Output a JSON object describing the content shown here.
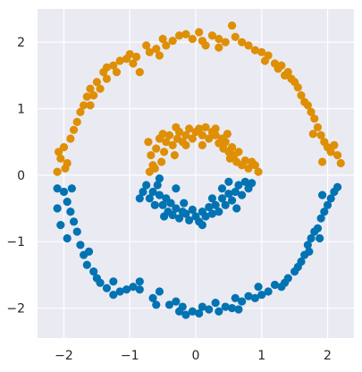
{
  "chart_data": {
    "type": "scatter",
    "title": "",
    "xlabel": "",
    "ylabel": "",
    "xlim": [
      -2.4,
      2.4
    ],
    "ylim": [
      -2.45,
      2.5
    ],
    "xticks": [
      -2,
      -1,
      0,
      1,
      2
    ],
    "yticks": [
      -2,
      -1,
      0,
      1,
      2
    ],
    "grid": true,
    "legend": "none",
    "colors": {
      "background": "#EAEAF2",
      "grid": "#FFFFFF",
      "blue": "#0173B2",
      "orange": "#DE8F05"
    },
    "series": [
      {
        "color": "#DE8F05",
        "points": [
          [
            -2.05,
            0.25
          ],
          [
            -2.0,
            0.42
          ],
          [
            -1.95,
            0.18
          ],
          [
            -2.1,
            0.05
          ],
          [
            -1.9,
            0.55
          ],
          [
            -1.85,
            0.68
          ],
          [
            -1.8,
            0.8
          ],
          [
            -1.75,
            0.95
          ],
          [
            -1.7,
            1.05
          ],
          [
            -1.65,
            1.18
          ],
          [
            -1.6,
            1.3
          ],
          [
            -1.55,
            1.2
          ],
          [
            -1.5,
            1.4
          ],
          [
            -1.45,
            1.3
          ],
          [
            -1.4,
            1.55
          ],
          [
            -1.35,
            1.45
          ],
          [
            -1.25,
            1.65
          ],
          [
            -1.2,
            1.55
          ],
          [
            -1.15,
            1.72
          ],
          [
            -1.05,
            1.75
          ],
          [
            -1.0,
            1.82
          ],
          [
            -0.95,
            1.68
          ],
          [
            -0.9,
            1.78
          ],
          [
            -0.85,
            1.55
          ],
          [
            -0.75,
            1.95
          ],
          [
            -0.7,
            1.85
          ],
          [
            -0.6,
            1.9
          ],
          [
            -0.5,
            2.05
          ],
          [
            -0.45,
            1.95
          ],
          [
            -0.35,
            2.02
          ],
          [
            -0.25,
            2.1
          ],
          [
            -0.15,
            2.12
          ],
          [
            -0.05,
            2.05
          ],
          [
            0.05,
            2.15
          ],
          [
            0.1,
            2.02
          ],
          [
            0.15,
            1.95
          ],
          [
            0.25,
            2.1
          ],
          [
            0.35,
            2.05
          ],
          [
            0.45,
            2.0
          ],
          [
            0.55,
            2.25
          ],
          [
            0.6,
            2.08
          ],
          [
            0.7,
            2.0
          ],
          [
            0.8,
            1.95
          ],
          [
            0.9,
            1.88
          ],
          [
            1.0,
            1.85
          ],
          [
            1.05,
            1.72
          ],
          [
            1.1,
            1.8
          ],
          [
            1.2,
            1.68
          ],
          [
            1.25,
            1.6
          ],
          [
            1.3,
            1.65
          ],
          [
            1.35,
            1.5
          ],
          [
            1.4,
            1.55
          ],
          [
            1.5,
            1.4
          ],
          [
            1.55,
            1.32
          ],
          [
            1.6,
            1.2
          ],
          [
            1.65,
            1.1
          ],
          [
            1.7,
            1.05
          ],
          [
            1.75,
            0.95
          ],
          [
            1.8,
            0.85
          ],
          [
            1.85,
            0.72
          ],
          [
            1.9,
            0.6
          ],
          [
            1.95,
            0.5
          ],
          [
            2.0,
            0.42
          ],
          [
            2.1,
            0.45
          ],
          [
            2.15,
            0.3
          ],
          [
            2.2,
            0.18
          ],
          [
            1.92,
            0.2
          ],
          [
            2.05,
            0.35
          ],
          [
            -1.98,
            0.1
          ],
          [
            -2.08,
            0.35
          ],
          [
            -1.6,
            1.05
          ],
          [
            -1.35,
            1.62
          ],
          [
            -0.55,
            1.8
          ],
          [
            0.35,
            1.92
          ],
          [
            1.45,
            1.45
          ],
          [
            1.78,
            0.62
          ],
          [
            -0.72,
            0.5
          ],
          [
            -0.68,
            0.3
          ],
          [
            -0.65,
            0.15
          ],
          [
            -0.6,
            0.4
          ],
          [
            -0.55,
            0.55
          ],
          [
            -0.52,
            0.2
          ],
          [
            -0.48,
            0.35
          ],
          [
            -0.45,
            0.5
          ],
          [
            -0.4,
            0.6
          ],
          [
            -0.35,
            0.45
          ],
          [
            -0.32,
            0.3
          ],
          [
            -0.28,
            0.55
          ],
          [
            -0.25,
            0.65
          ],
          [
            -0.2,
            0.5
          ],
          [
            -0.15,
            0.6
          ],
          [
            -0.1,
            0.7
          ],
          [
            -0.05,
            0.55
          ],
          [
            0.0,
            0.65
          ],
          [
            0.05,
            0.7
          ],
          [
            0.1,
            0.6
          ],
          [
            0.15,
            0.72
          ],
          [
            0.2,
            0.55
          ],
          [
            0.25,
            0.65
          ],
          [
            0.3,
            0.6
          ],
          [
            0.35,
            0.48
          ],
          [
            0.4,
            0.55
          ],
          [
            0.42,
            0.4
          ],
          [
            0.45,
            0.5
          ],
          [
            0.5,
            0.35
          ],
          [
            0.52,
            0.25
          ],
          [
            0.55,
            0.42
          ],
          [
            0.58,
            0.3
          ],
          [
            0.62,
            0.2
          ],
          [
            0.65,
            0.35
          ],
          [
            0.7,
            0.15
          ],
          [
            0.75,
            0.22
          ],
          [
            0.8,
            0.1
          ],
          [
            0.85,
            0.2
          ],
          [
            0.9,
            0.15
          ],
          [
            0.95,
            0.05
          ],
          [
            -0.3,
            0.72
          ],
          [
            0.1,
            0.45
          ],
          [
            -0.5,
            0.62
          ],
          [
            0.3,
            0.7
          ],
          [
            -0.7,
            0.05
          ],
          [
            -0.62,
            0.1
          ],
          [
            0.48,
            0.62
          ],
          [
            -0.15,
            0.45
          ]
        ]
      },
      {
        "color": "#0173B2",
        "points": [
          [
            -2.1,
            -0.2
          ],
          [
            -2.0,
            -0.25
          ],
          [
            -1.95,
            -0.4
          ],
          [
            -1.9,
            -0.55
          ],
          [
            -2.05,
            -0.75
          ],
          [
            -1.95,
            -0.95
          ],
          [
            -1.85,
            -0.7
          ],
          [
            -1.8,
            -0.85
          ],
          [
            -1.75,
            -1.05
          ],
          [
            -1.7,
            -1.2
          ],
          [
            -1.65,
            -1.35
          ],
          [
            -1.55,
            -1.45
          ],
          [
            -1.5,
            -1.55
          ],
          [
            -1.45,
            -1.62
          ],
          [
            -1.35,
            -1.7
          ],
          [
            -1.25,
            -1.6
          ],
          [
            -1.15,
            -1.75
          ],
          [
            -1.05,
            -1.72
          ],
          [
            -0.95,
            -1.68
          ],
          [
            -0.85,
            -1.6
          ],
          [
            -0.65,
            -1.85
          ],
          [
            -0.6,
            -1.95
          ],
          [
            -0.55,
            -1.75
          ],
          [
            -0.3,
            -1.9
          ],
          [
            -0.25,
            -2.05
          ],
          [
            -0.2,
            -1.98
          ],
          [
            -0.15,
            -2.1
          ],
          [
            -0.05,
            -2.05
          ],
          [
            0.05,
            -2.08
          ],
          [
            0.1,
            -1.98
          ],
          [
            0.2,
            -2.02
          ],
          [
            0.3,
            -1.92
          ],
          [
            0.35,
            -2.05
          ],
          [
            0.45,
            -1.98
          ],
          [
            0.55,
            -2.0
          ],
          [
            0.6,
            -1.85
          ],
          [
            0.7,
            -1.9
          ],
          [
            0.8,
            -1.82
          ],
          [
            0.9,
            -1.85
          ],
          [
            1.0,
            -1.8
          ],
          [
            1.1,
            -1.75
          ],
          [
            1.2,
            -1.65
          ],
          [
            1.3,
            -1.68
          ],
          [
            1.4,
            -1.55
          ],
          [
            1.5,
            -1.45
          ],
          [
            1.55,
            -1.38
          ],
          [
            1.6,
            -1.3
          ],
          [
            1.65,
            -1.2
          ],
          [
            1.7,
            -1.05
          ],
          [
            1.75,
            -0.95
          ],
          [
            1.8,
            -0.85
          ],
          [
            1.85,
            -0.8
          ],
          [
            1.9,
            -0.65
          ],
          [
            1.95,
            -0.55
          ],
          [
            2.0,
            -0.45
          ],
          [
            2.05,
            -0.35
          ],
          [
            2.1,
            -0.25
          ],
          [
            2.15,
            -0.18
          ],
          [
            1.88,
            -0.95
          ],
          [
            1.72,
            -1.15
          ],
          [
            -1.88,
            -0.2
          ],
          [
            -2.1,
            -0.5
          ],
          [
            -1.62,
            -1.15
          ],
          [
            -1.25,
            -1.8
          ],
          [
            -0.4,
            -1.95
          ],
          [
            0.65,
            -2.02
          ],
          [
            1.35,
            -1.62
          ],
          [
            1.92,
            -0.3
          ],
          [
            -0.85,
            -1.72
          ],
          [
            0.95,
            -1.68
          ],
          [
            -0.85,
            -0.35
          ],
          [
            -0.8,
            -0.25
          ],
          [
            -0.75,
            -0.15
          ],
          [
            -0.7,
            -0.35
          ],
          [
            -0.65,
            -0.25
          ],
          [
            -0.62,
            -0.45
          ],
          [
            -0.58,
            -0.15
          ],
          [
            -0.55,
            -0.3
          ],
          [
            -0.5,
            -0.45
          ],
          [
            -0.45,
            -0.35
          ],
          [
            -0.42,
            -0.55
          ],
          [
            -0.38,
            -0.42
          ],
          [
            -0.35,
            -0.6
          ],
          [
            -0.3,
            -0.5
          ],
          [
            -0.25,
            -0.65
          ],
          [
            -0.2,
            -0.55
          ],
          [
            -0.15,
            -0.58
          ],
          [
            -0.1,
            -0.68
          ],
          [
            -0.05,
            -0.52
          ],
          [
            0.0,
            -0.62
          ],
          [
            0.05,
            -0.7
          ],
          [
            0.1,
            -0.55
          ],
          [
            0.15,
            -0.62
          ],
          [
            0.2,
            -0.48
          ],
          [
            0.25,
            -0.58
          ],
          [
            0.3,
            -0.45
          ],
          [
            0.35,
            -0.55
          ],
          [
            0.4,
            -0.35
          ],
          [
            0.45,
            -0.45
          ],
          [
            0.5,
            -0.28
          ],
          [
            0.55,
            -0.38
          ],
          [
            0.6,
            -0.25
          ],
          [
            0.65,
            -0.15
          ],
          [
            0.7,
            -0.3
          ],
          [
            0.75,
            -0.1
          ],
          [
            0.8,
            -0.2
          ],
          [
            0.85,
            -0.12
          ],
          [
            0.5,
            -0.1
          ],
          [
            0.4,
            -0.2
          ],
          [
            -0.3,
            -0.2
          ],
          [
            -0.18,
            -0.42
          ],
          [
            0.25,
            -0.35
          ],
          [
            -0.55,
            -0.05
          ],
          [
            0.62,
            -0.5
          ],
          [
            -0.48,
            -0.62
          ],
          [
            0.1,
            -0.75
          ]
        ]
      }
    ]
  }
}
